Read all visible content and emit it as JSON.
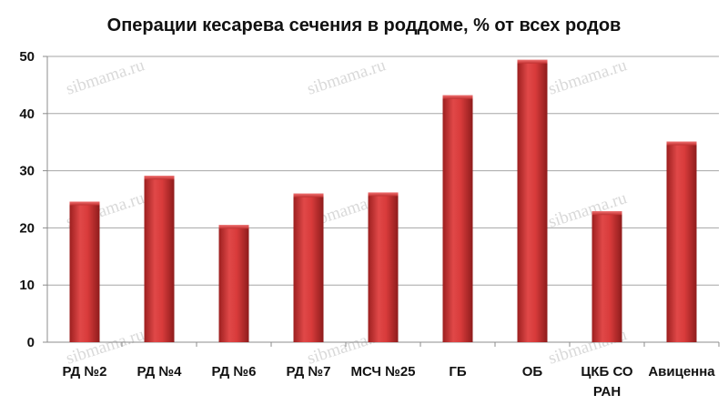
{
  "chart_data": {
    "type": "bar",
    "title": "Операции кесарева сечения в роддоме, % от всех родов",
    "xlabel": "",
    "ylabel": "",
    "categories": [
      "РД №2",
      "РД №4",
      "РД №6",
      "РД №7",
      "МСЧ №25",
      "ГБ",
      "ОБ",
      "ЦКБ СО РАН",
      "Авиценна"
    ],
    "values": [
      24.6,
      29.1,
      20.5,
      26.0,
      26.2,
      43.2,
      49.4,
      22.9,
      35.1
    ],
    "ylim": [
      0,
      50
    ],
    "yticks": [
      0,
      10,
      20,
      30,
      40,
      50
    ],
    "grid": true,
    "legend": "none",
    "bar_color": "#d63c3c"
  },
  "watermark": "sibmama.ru"
}
